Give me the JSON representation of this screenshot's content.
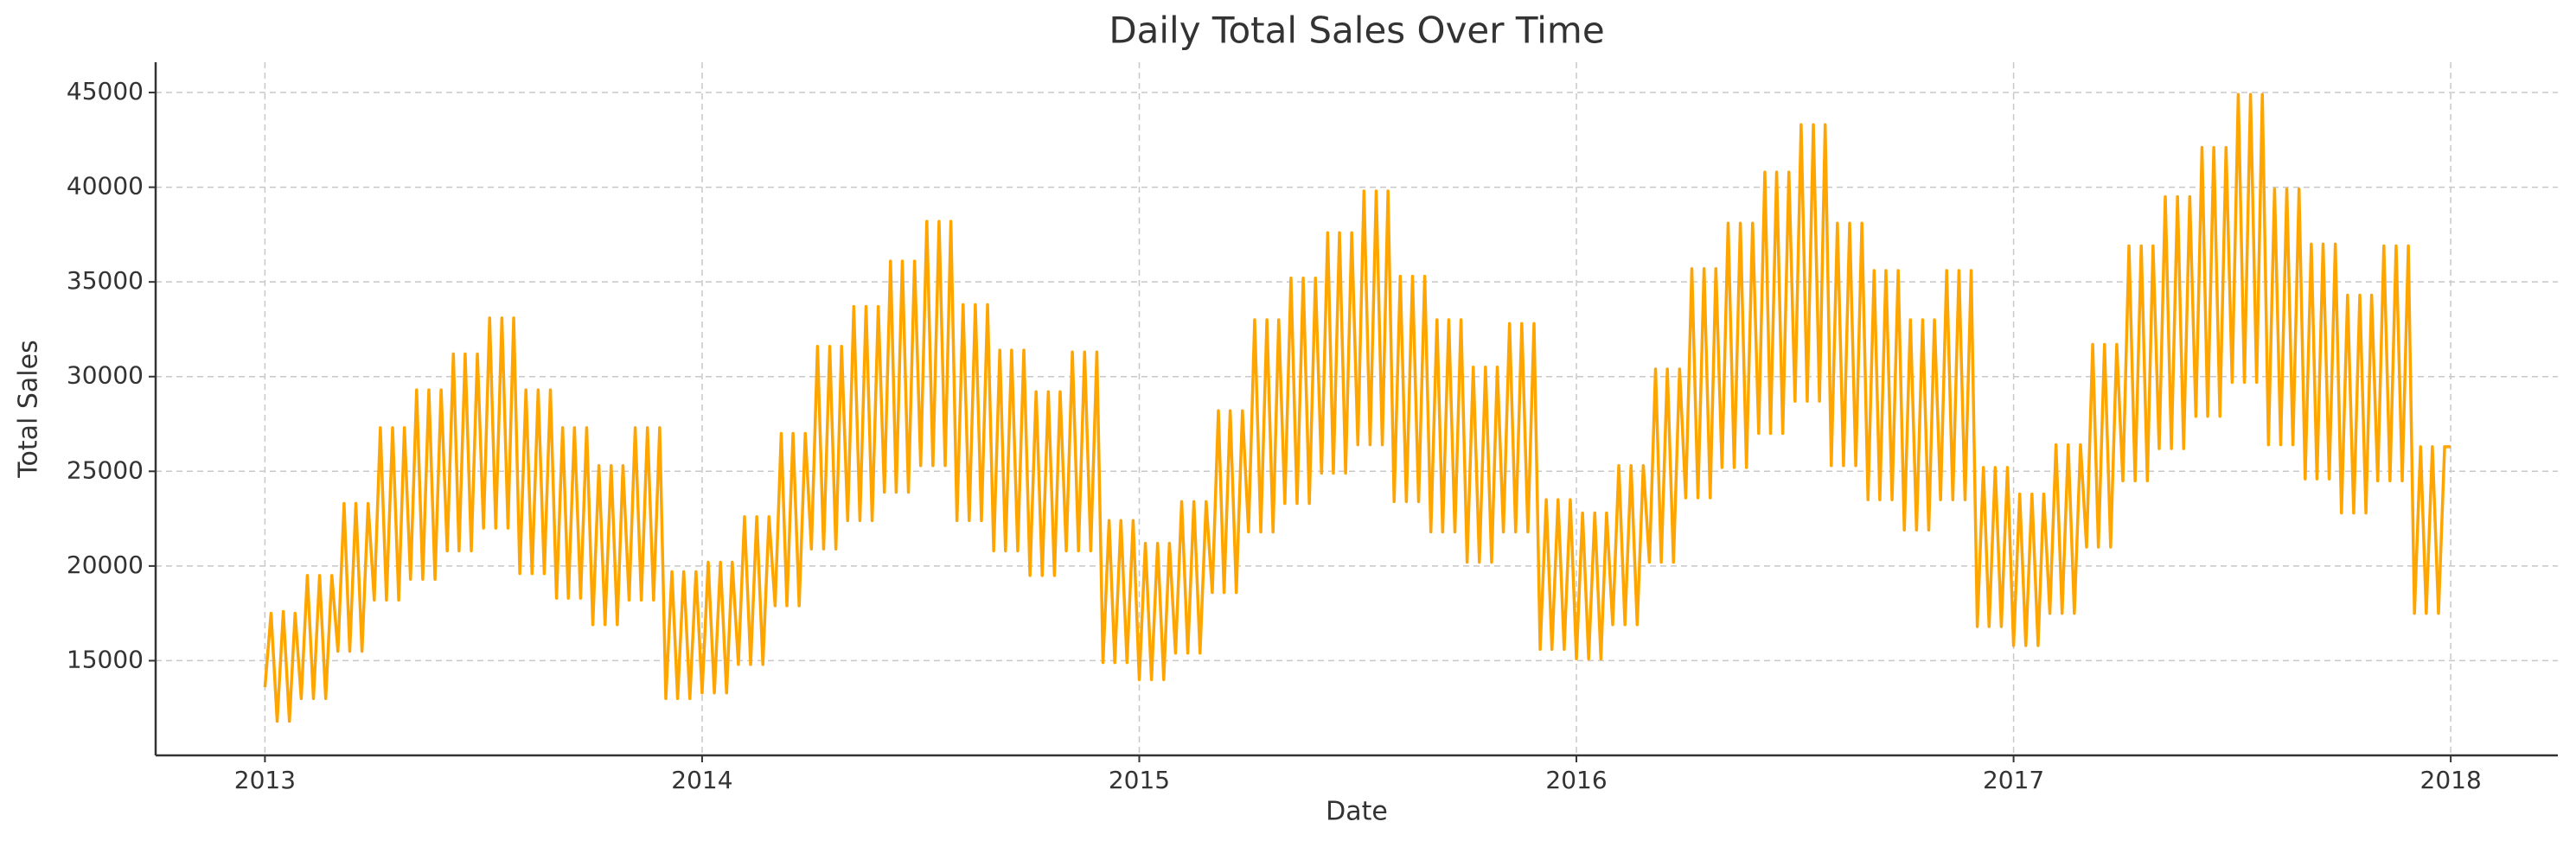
{
  "chart_data": {
    "type": "line",
    "title": "Daily Total Sales Over Time",
    "x_label": "Date",
    "y_label": "Total Sales",
    "xlim": [
      2012.75,
      2018.245
    ],
    "xticks": [
      2013,
      2014,
      2015,
      2016,
      2017,
      2018
    ],
    "ylim": [
      10000,
      46600
    ],
    "yticks": [
      15000,
      20000,
      25000,
      30000,
      35000,
      40000,
      45000
    ],
    "grid": true,
    "x": [
      2013,
      2013.014,
      2013.028,
      2013.042,
      2013.056,
      2013.069,
      2013.083,
      2013.097,
      2013.111,
      2013.125,
      2013.139,
      2013.153,
      2013.167,
      2013.181,
      2013.194,
      2013.208,
      2013.222,
      2013.236,
      2013.25,
      2013.264,
      2013.278,
      2013.292,
      2013.306,
      2013.319,
      2013.333,
      2013.347,
      2013.361,
      2013.375,
      2013.389,
      2013.403,
      2013.417,
      2013.431,
      2013.444,
      2013.458,
      2013.472,
      2013.486,
      2013.5,
      2013.514,
      2013.528,
      2013.542,
      2013.556,
      2013.569,
      2013.583,
      2013.597,
      2013.611,
      2013.625,
      2013.639,
      2013.653,
      2013.667,
      2013.681,
      2013.694,
      2013.708,
      2013.722,
      2013.736,
      2013.75,
      2013.764,
      2013.778,
      2013.792,
      2013.806,
      2013.819,
      2013.833,
      2013.847,
      2013.861,
      2013.875,
      2013.889,
      2013.903,
      2013.917,
      2013.931,
      2013.944,
      2013.958,
      2013.972,
      2013.986,
      2014,
      2014.014,
      2014.028,
      2014.042,
      2014.056,
      2014.069,
      2014.083,
      2014.097,
      2014.111,
      2014.125,
      2014.139,
      2014.153,
      2014.167,
      2014.181,
      2014.194,
      2014.208,
      2014.222,
      2014.236,
      2014.25,
      2014.264,
      2014.278,
      2014.292,
      2014.306,
      2014.319,
      2014.333,
      2014.347,
      2014.361,
      2014.375,
      2014.389,
      2014.403,
      2014.417,
      2014.431,
      2014.444,
      2014.458,
      2014.472,
      2014.486,
      2014.5,
      2014.514,
      2014.528,
      2014.542,
      2014.556,
      2014.569,
      2014.583,
      2014.597,
      2014.611,
      2014.625,
      2014.639,
      2014.653,
      2014.667,
      2014.681,
      2014.694,
      2014.708,
      2014.722,
      2014.736,
      2014.75,
      2014.764,
      2014.778,
      2014.792,
      2014.806,
      2014.819,
      2014.833,
      2014.847,
      2014.861,
      2014.875,
      2014.889,
      2014.903,
      2014.917,
      2014.931,
      2014.944,
      2014.958,
      2014.972,
      2014.986,
      2015,
      2015.014,
      2015.028,
      2015.042,
      2015.056,
      2015.069,
      2015.083,
      2015.097,
      2015.111,
      2015.125,
      2015.139,
      2015.153,
      2015.167,
      2015.181,
      2015.194,
      2015.208,
      2015.222,
      2015.236,
      2015.25,
      2015.264,
      2015.278,
      2015.292,
      2015.306,
      2015.319,
      2015.333,
      2015.347,
      2015.361,
      2015.375,
      2015.389,
      2015.403,
      2015.417,
      2015.431,
      2015.444,
      2015.458,
      2015.472,
      2015.486,
      2015.5,
      2015.514,
      2015.528,
      2015.542,
      2015.556,
      2015.569,
      2015.583,
      2015.597,
      2015.611,
      2015.625,
      2015.639,
      2015.653,
      2015.667,
      2015.681,
      2015.694,
      2015.708,
      2015.722,
      2015.736,
      2015.75,
      2015.764,
      2015.778,
      2015.792,
      2015.806,
      2015.819,
      2015.833,
      2015.847,
      2015.861,
      2015.875,
      2015.889,
      2015.903,
      2015.917,
      2015.931,
      2015.944,
      2015.958,
      2015.972,
      2015.986,
      2016,
      2016.014,
      2016.028,
      2016.042,
      2016.056,
      2016.069,
      2016.083,
      2016.097,
      2016.111,
      2016.125,
      2016.139,
      2016.153,
      2016.167,
      2016.181,
      2016.194,
      2016.208,
      2016.222,
      2016.236,
      2016.25,
      2016.264,
      2016.278,
      2016.292,
      2016.306,
      2016.319,
      2016.333,
      2016.347,
      2016.361,
      2016.375,
      2016.389,
      2016.403,
      2016.417,
      2016.431,
      2016.444,
      2016.458,
      2016.472,
      2016.486,
      2016.5,
      2016.514,
      2016.528,
      2016.542,
      2016.556,
      2016.569,
      2016.583,
      2016.597,
      2016.611,
      2016.625,
      2016.639,
      2016.653,
      2016.667,
      2016.681,
      2016.694,
      2016.708,
      2016.722,
      2016.736,
      2016.75,
      2016.764,
      2016.778,
      2016.792,
      2016.806,
      2016.819,
      2016.833,
      2016.847,
      2016.861,
      2016.875,
      2016.889,
      2016.903,
      2016.917,
      2016.931,
      2016.944,
      2016.958,
      2016.972,
      2016.986,
      2017,
      2017.014,
      2017.028,
      2017.042,
      2017.056,
      2017.069,
      2017.083,
      2017.097,
      2017.111,
      2017.125,
      2017.139,
      2017.153,
      2017.167,
      2017.181,
      2017.194,
      2017.208,
      2017.222,
      2017.236,
      2017.25,
      2017.264,
      2017.278,
      2017.292,
      2017.306,
      2017.319,
      2017.333,
      2017.347,
      2017.361,
      2017.375,
      2017.389,
      2017.403,
      2017.417,
      2017.431,
      2017.444,
      2017.458,
      2017.472,
      2017.486,
      2017.5,
      2017.514,
      2017.528,
      2017.542,
      2017.556,
      2017.569,
      2017.583,
      2017.597,
      2017.611,
      2017.625,
      2017.639,
      2017.653,
      2017.667,
      2017.681,
      2017.694,
      2017.708,
      2017.722,
      2017.736,
      2017.75,
      2017.764,
      2017.778,
      2017.792,
      2017.806,
      2017.819,
      2017.833,
      2017.847,
      2017.861,
      2017.875,
      2017.889,
      2017.903,
      2017.917,
      2017.931,
      2017.944,
      2017.958,
      2017.972,
      2017.986,
      2018
    ],
    "series": [
      {
        "name": "Total Sales",
        "color": "#ffa500",
        "values": [
          13600,
          17500,
          11800,
          17600,
          11800,
          17500,
          13000,
          19500,
          13000,
          19500,
          13000,
          19500,
          15500,
          23300,
          15500,
          23300,
          15500,
          23300,
          18200,
          27300,
          18200,
          27300,
          18200,
          27300,
          19300,
          29300,
          19300,
          29300,
          19300,
          29300,
          20800,
          31200,
          20800,
          31200,
          20800,
          31200,
          22000,
          33100,
          22000,
          33100,
          22000,
          33100,
          19600,
          29300,
          19600,
          29300,
          19600,
          29300,
          18300,
          27300,
          18300,
          27300,
          18300,
          27300,
          16900,
          25300,
          16900,
          25300,
          16900,
          25300,
          18200,
          27300,
          18200,
          27300,
          18200,
          27300,
          13000,
          19700,
          13000,
          19700,
          13000,
          19700,
          13300,
          20200,
          13300,
          20200,
          13300,
          20200,
          14800,
          22600,
          14800,
          22600,
          14800,
          22600,
          17900,
          27000,
          17900,
          27000,
          17900,
          27000,
          20900,
          31600,
          20900,
          31600,
          20900,
          31600,
          22400,
          33700,
          22400,
          33700,
          22400,
          33700,
          23900,
          36100,
          23900,
          36100,
          23900,
          36100,
          25300,
          38200,
          25300,
          38200,
          25300,
          38200,
          22400,
          33800,
          22400,
          33800,
          22400,
          33800,
          20800,
          31400,
          20800,
          31400,
          20800,
          31400,
          19500,
          29200,
          19500,
          29200,
          19500,
          29200,
          20800,
          31300,
          20800,
          31300,
          20800,
          31300,
          14900,
          22400,
          14900,
          22400,
          14900,
          22400,
          14000,
          21200,
          14000,
          21200,
          14000,
          21200,
          15400,
          23400,
          15400,
          23400,
          15400,
          23400,
          18600,
          28200,
          18600,
          28200,
          18600,
          28200,
          21800,
          33000,
          21800,
          33000,
          21800,
          33000,
          23300,
          35200,
          23300,
          35200,
          23300,
          35200,
          24900,
          37600,
          24900,
          37600,
          24900,
          37600,
          26400,
          39800,
          26400,
          39800,
          26400,
          39800,
          23400,
          35300,
          23400,
          35300,
          23400,
          35300,
          21800,
          33000,
          21800,
          33000,
          21800,
          33000,
          20200,
          30500,
          20200,
          30500,
          20200,
          30500,
          21800,
          32800,
          21800,
          32800,
          21800,
          32800,
          15600,
          23500,
          15600,
          23500,
          15600,
          23500,
          15100,
          22800,
          15100,
          22800,
          15100,
          22800,
          16900,
          25300,
          16900,
          25300,
          16900,
          25300,
          20200,
          30400,
          20200,
          30400,
          20200,
          30400,
          23600,
          35700,
          23600,
          35700,
          23600,
          35700,
          25200,
          38100,
          25200,
          38100,
          25200,
          38100,
          27000,
          40800,
          27000,
          40800,
          27000,
          40800,
          28700,
          43300,
          28700,
          43300,
          28700,
          43300,
          25300,
          38100,
          25300,
          38100,
          25300,
          38100,
          23500,
          35600,
          23500,
          35600,
          23500,
          35600,
          21900,
          33000,
          21900,
          33000,
          21900,
          33000,
          23500,
          35600,
          23500,
          35600,
          23500,
          35600,
          16800,
          25200,
          16800,
          25200,
          16800,
          25200,
          15800,
          23800,
          15800,
          23800,
          15800,
          23800,
          17500,
          26400,
          17500,
          26400,
          17500,
          26400,
          21000,
          31700,
          21000,
          31700,
          21000,
          31700,
          24500,
          36900,
          24500,
          36900,
          24500,
          36900,
          26200,
          39500,
          26200,
          39500,
          26200,
          39500,
          27900,
          42100,
          27900,
          42100,
          27900,
          42100,
          29700,
          44900,
          29700,
          44900,
          29700,
          44900,
          26400,
          39900,
          26400,
          39900,
          26400,
          39900,
          24600,
          37000,
          24600,
          37000,
          24600,
          37000,
          22800,
          34300,
          22800,
          34300,
          22800,
          34300,
          24500,
          36900,
          24500,
          36900,
          24500,
          36900,
          17500,
          26300,
          17500,
          26300,
          17500,
          26300,
          26300
        ]
      }
    ]
  }
}
